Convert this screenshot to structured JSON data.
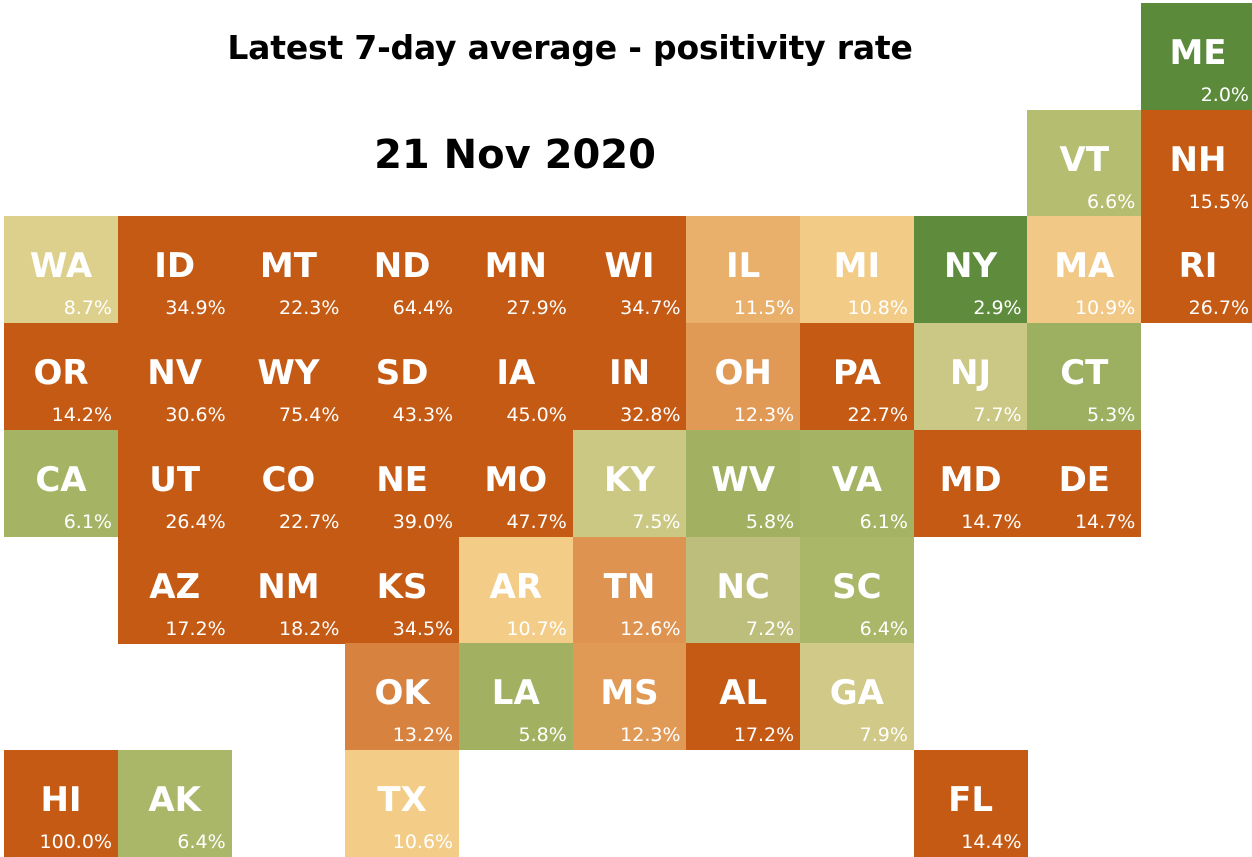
{
  "title": "Latest 7-day average - positivity rate",
  "date": "21 Nov 2020",
  "states": [
    {
      "abbr": "ME",
      "value": "2.0%",
      "row": 0,
      "col": 10,
      "color": "#5b8a3a"
    },
    {
      "abbr": "VT",
      "value": "6.6%",
      "row": 1,
      "col": 9,
      "color": "#b5bd71"
    },
    {
      "abbr": "NH",
      "value": "15.5%",
      "row": 1,
      "col": 10,
      "color": "#c55a14"
    },
    {
      "abbr": "WA",
      "value": "8.7%",
      "row": 2,
      "col": 0,
      "color": "#ddd08c"
    },
    {
      "abbr": "ID",
      "value": "34.9%",
      "row": 2,
      "col": 1,
      "color": "#c55a14"
    },
    {
      "abbr": "MT",
      "value": "22.3%",
      "row": 2,
      "col": 2,
      "color": "#c55a14"
    },
    {
      "abbr": "ND",
      "value": "64.4%",
      "row": 2,
      "col": 3,
      "color": "#c55a14"
    },
    {
      "abbr": "MN",
      "value": "27.9%",
      "row": 2,
      "col": 4,
      "color": "#c55a14"
    },
    {
      "abbr": "WI",
      "value": "34.7%",
      "row": 2,
      "col": 5,
      "color": "#c55a14"
    },
    {
      "abbr": "IL",
      "value": "11.5%",
      "row": 2,
      "col": 6,
      "color": "#e9b06b"
    },
    {
      "abbr": "MI",
      "value": "10.8%",
      "row": 2,
      "col": 7,
      "color": "#f2cb86"
    },
    {
      "abbr": "NY",
      "value": "2.9%",
      "row": 2,
      "col": 8,
      "color": "#5e8b3c"
    },
    {
      "abbr": "MA",
      "value": "10.9%",
      "row": 2,
      "col": 9,
      "color": "#f1c886"
    },
    {
      "abbr": "RI",
      "value": "26.7%",
      "row": 2,
      "col": 10,
      "color": "#c55a14"
    },
    {
      "abbr": "OR",
      "value": "14.2%",
      "row": 3,
      "col": 0,
      "color": "#c55a14"
    },
    {
      "abbr": "NV",
      "value": "30.6%",
      "row": 3,
      "col": 1,
      "color": "#c55a14"
    },
    {
      "abbr": "WY",
      "value": "75.4%",
      "row": 3,
      "col": 2,
      "color": "#c55a14"
    },
    {
      "abbr": "SD",
      "value": "43.3%",
      "row": 3,
      "col": 3,
      "color": "#c55a14"
    },
    {
      "abbr": "IA",
      "value": "45.0%",
      "row": 3,
      "col": 4,
      "color": "#c55a14"
    },
    {
      "abbr": "IN",
      "value": "32.8%",
      "row": 3,
      "col": 5,
      "color": "#c55a14"
    },
    {
      "abbr": "OH",
      "value": "12.3%",
      "row": 3,
      "col": 6,
      "color": "#e19a56"
    },
    {
      "abbr": "PA",
      "value": "22.7%",
      "row": 3,
      "col": 7,
      "color": "#c55a14"
    },
    {
      "abbr": "NJ",
      "value": "7.7%",
      "row": 3,
      "col": 8,
      "color": "#cbc785"
    },
    {
      "abbr": "CT",
      "value": "5.3%",
      "row": 3,
      "col": 9,
      "color": "#9db061"
    },
    {
      "abbr": "CA",
      "value": "6.1%",
      "row": 4,
      "col": 0,
      "color": "#a5b364"
    },
    {
      "abbr": "UT",
      "value": "26.4%",
      "row": 4,
      "col": 1,
      "color": "#c55a14"
    },
    {
      "abbr": "CO",
      "value": "22.7%",
      "row": 4,
      "col": 2,
      "color": "#c55a14"
    },
    {
      "abbr": "NE",
      "value": "39.0%",
      "row": 4,
      "col": 3,
      "color": "#c55a14"
    },
    {
      "abbr": "MO",
      "value": "47.7%",
      "row": 4,
      "col": 4,
      "color": "#c55a14"
    },
    {
      "abbr": "KY",
      "value": "7.5%",
      "row": 4,
      "col": 5,
      "color": "#cac883"
    },
    {
      "abbr": "WV",
      "value": "5.8%",
      "row": 4,
      "col": 6,
      "color": "#a2b161"
    },
    {
      "abbr": "VA",
      "value": "6.1%",
      "row": 4,
      "col": 7,
      "color": "#a5b364"
    },
    {
      "abbr": "MD",
      "value": "14.7%",
      "row": 4,
      "col": 8,
      "color": "#c55a14"
    },
    {
      "abbr": "DE",
      "value": "14.7%",
      "row": 4,
      "col": 9,
      "color": "#c55a14"
    },
    {
      "abbr": "AZ",
      "value": "17.2%",
      "row": 5,
      "col": 1,
      "color": "#c55a14"
    },
    {
      "abbr": "NM",
      "value": "18.2%",
      "row": 5,
      "col": 2,
      "color": "#c55a14"
    },
    {
      "abbr": "KS",
      "value": "34.5%",
      "row": 5,
      "col": 3,
      "color": "#c55a14"
    },
    {
      "abbr": "AR",
      "value": "10.7%",
      "row": 5,
      "col": 4,
      "color": "#f3cd88"
    },
    {
      "abbr": "TN",
      "value": "12.6%",
      "row": 5,
      "col": 5,
      "color": "#de9350"
    },
    {
      "abbr": "NC",
      "value": "7.2%",
      "row": 5,
      "col": 6,
      "color": "#bdbe7b"
    },
    {
      "abbr": "SC",
      "value": "6.4%",
      "row": 5,
      "col": 7,
      "color": "#aab668"
    },
    {
      "abbr": "OK",
      "value": "13.2%",
      "row": 6,
      "col": 3,
      "color": "#d8823f"
    },
    {
      "abbr": "LA",
      "value": "5.8%",
      "row": 6,
      "col": 4,
      "color": "#a2b161"
    },
    {
      "abbr": "MS",
      "value": "12.3%",
      "row": 6,
      "col": 5,
      "color": "#e19a56"
    },
    {
      "abbr": "AL",
      "value": "17.2%",
      "row": 6,
      "col": 6,
      "color": "#c55a14"
    },
    {
      "abbr": "GA",
      "value": "7.9%",
      "row": 6,
      "col": 7,
      "color": "#d0c988"
    },
    {
      "abbr": "HI",
      "value": "100.0%",
      "row": 7,
      "col": 0,
      "color": "#c55a14"
    },
    {
      "abbr": "AK",
      "value": "6.4%",
      "row": 7,
      "col": 1,
      "color": "#aab668"
    },
    {
      "abbr": "TX",
      "value": "10.6%",
      "row": 7,
      "col": 3,
      "color": "#f3cd88"
    },
    {
      "abbr": "FL",
      "value": "14.4%",
      "row": 7,
      "col": 8,
      "color": "#c55a14"
    }
  ]
}
